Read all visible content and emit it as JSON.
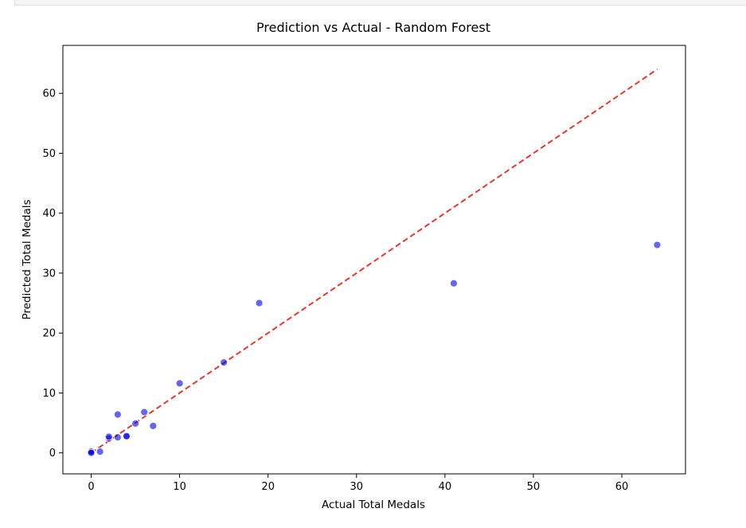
{
  "chart_data": {
    "type": "scatter",
    "title": "Prediction vs Actual - Random Forest",
    "xlabel": "Actual Total Medals",
    "ylabel": "Predicted Total Medals",
    "xlim": [
      -3.2,
      67.2
    ],
    "ylim": [
      -3.5,
      68.0
    ],
    "xticks": [
      0,
      10,
      20,
      30,
      40,
      50,
      60
    ],
    "yticks": [
      0,
      10,
      20,
      30,
      40,
      50,
      60
    ],
    "grid": false,
    "point_color": "#0000dd",
    "reference_line": {
      "from": [
        0,
        0
      ],
      "to": [
        64,
        64
      ],
      "color": "#e03a30",
      "style": "dashed"
    },
    "points": [
      {
        "x": 0,
        "y": 0.1
      },
      {
        "x": 0,
        "y": 0.2
      },
      {
        "x": 0,
        "y": 0.0
      },
      {
        "x": 1,
        "y": 0.2
      },
      {
        "x": 2,
        "y": 2.4
      },
      {
        "x": 2,
        "y": 2.7
      },
      {
        "x": 3,
        "y": 2.6
      },
      {
        "x": 3,
        "y": 6.4
      },
      {
        "x": 4,
        "y": 2.7
      },
      {
        "x": 4,
        "y": 2.8
      },
      {
        "x": 5,
        "y": 4.9
      },
      {
        "x": 6,
        "y": 6.8
      },
      {
        "x": 7,
        "y": 4.5
      },
      {
        "x": 10,
        "y": 11.6
      },
      {
        "x": 15,
        "y": 15.1
      },
      {
        "x": 19,
        "y": 25.0
      },
      {
        "x": 41,
        "y": 28.3
      },
      {
        "x": 64,
        "y": 34.7
      }
    ]
  }
}
